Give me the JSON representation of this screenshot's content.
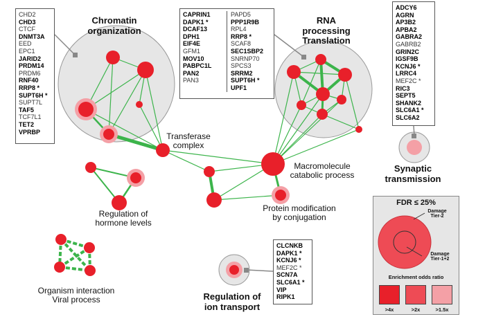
{
  "figure_letter": "",
  "clusters": {
    "chromatin": {
      "title_line1": "Chromatin",
      "title_line2": "organization"
    },
    "rna": {
      "title_line1": "RNA",
      "title_line2": "processing",
      "title_line3": "Translation"
    },
    "transferase": {
      "label": "Transferase",
      "label_line2": "complex"
    },
    "macromolecule": {
      "label_line1": "Macromolecule",
      "label_line2": "catabolic process"
    },
    "protein_mod": {
      "label_line1": "Protein modification",
      "label_line2": "by conjugation"
    },
    "hormone": {
      "label_line1": "Regulation of",
      "label_line2": "hormone levels"
    },
    "organism": {
      "label_line1": "Organism interaction",
      "label_line2": "Viral process"
    },
    "ion_transport": {
      "label_line1": "Regulation of",
      "label_line2": "ion transport"
    },
    "synaptic": {
      "label_line1": "Synaptic",
      "label_line2": "transmission"
    }
  },
  "gene_lists": {
    "chromatin": [
      {
        "t": "CHD2",
        "b": false
      },
      {
        "t": "CHD3",
        "b": true
      },
      {
        "t": "CTCF",
        "b": false
      },
      {
        "t": "DNMT3A",
        "b": true
      },
      {
        "t": "EED",
        "b": false
      },
      {
        "t": "EPC1",
        "b": false
      },
      {
        "t": "JARID2",
        "b": true
      },
      {
        "t": "PRDM14",
        "b": true
      },
      {
        "t": "PRDM6",
        "b": false
      },
      {
        "t": "RNF40",
        "b": true
      },
      {
        "t": "RRP8 *",
        "b": true
      },
      {
        "t": "SUPT6H *",
        "b": true
      },
      {
        "t": "SUPT7L",
        "b": false
      },
      {
        "t": "TAF5",
        "b": true
      },
      {
        "t": "TCF7L1",
        "b": false
      },
      {
        "t": "TET2",
        "b": true
      },
      {
        "t": "VPRBP",
        "b": true
      }
    ],
    "rna_col1": [
      {
        "t": "CAPRIN1",
        "b": true
      },
      {
        "t": "DAPK1 *",
        "b": true
      },
      {
        "t": "DCAF13",
        "b": true
      },
      {
        "t": "DPH1",
        "b": true
      },
      {
        "t": "EIF4E",
        "b": true
      },
      {
        "t": "GFM1",
        "b": false
      },
      {
        "t": "MOV10",
        "b": true
      },
      {
        "t": "PABPC1L",
        "b": true
      },
      {
        "t": "PAN2",
        "b": true
      },
      {
        "t": "PAN3",
        "b": false
      }
    ],
    "rna_col2": [
      {
        "t": "PAPD5",
        "b": false
      },
      {
        "t": "PPP1R9B",
        "b": true
      },
      {
        "t": "RPL4",
        "b": false
      },
      {
        "t": "RRP8 *",
        "b": true
      },
      {
        "t": "SCAF8",
        "b": false
      },
      {
        "t": "SEC1SBP2",
        "b": true
      },
      {
        "t": "SNRNP70",
        "b": false
      },
      {
        "t": "SPCS3",
        "b": false
      },
      {
        "t": "SRRM2",
        "b": true
      },
      {
        "t": "SUPT6H *",
        "b": true
      },
      {
        "t": "UPF1",
        "b": true
      }
    ],
    "synaptic": [
      {
        "t": "ADCY6",
        "b": true
      },
      {
        "t": "AGRN",
        "b": true
      },
      {
        "t": "AP3B2",
        "b": true
      },
      {
        "t": "APBA2",
        "b": true
      },
      {
        "t": "GABRA2",
        "b": true
      },
      {
        "t": "GABRB2",
        "b": false
      },
      {
        "t": "GRIN2C",
        "b": true
      },
      {
        "t": "IGSF9B",
        "b": true
      },
      {
        "t": "KCNJ6 *",
        "b": true
      },
      {
        "t": "LRRC4",
        "b": true
      },
      {
        "t": "MEF2C *",
        "b": false
      },
      {
        "t": "RIC3",
        "b": true
      },
      {
        "t": "SEPT5",
        "b": true
      },
      {
        "t": "SHANK2",
        "b": true
      },
      {
        "t": "SLC6A1 *",
        "b": true
      },
      {
        "t": "SLC6A2",
        "b": true
      }
    ],
    "ion_transport": [
      {
        "t": "CLCNKB",
        "b": true
      },
      {
        "t": "DAPK1 *",
        "b": true
      },
      {
        "t": "KCNJ6 *",
        "b": true
      },
      {
        "t": "MEF2C *",
        "b": false
      },
      {
        "t": "SCN7A",
        "b": true
      },
      {
        "t": "SLC6A1 *",
        "b": true
      },
      {
        "t": "VIP",
        "b": true
      },
      {
        "t": "RIPK1",
        "b": true
      }
    ]
  },
  "legend": {
    "title": "FDR ≤ 25%",
    "damage_tier2_line1": "Damage",
    "damage_tier2_line2": "Tier-2",
    "damage_tier12_line1": "Damage",
    "damage_tier12_line2": "Tier-1+2",
    "odds_title": "Enrichment odds ratio",
    "swatches": [
      {
        "label": ">4x",
        "color": "#e8202a"
      },
      {
        "label": ">2x",
        "color": "#ee4b55"
      },
      {
        "label": ">1.5x",
        "color": "#f4a0a6"
      }
    ]
  },
  "colors": {
    "node_strong": "#e8202a",
    "node_mid": "#ee4b55",
    "node_light": "#f4a0a6",
    "edge": "#3cb44b",
    "cluster_fill": "#e6e6e6",
    "cluster_stroke": "#9a9a9a",
    "connector": "#888888"
  }
}
